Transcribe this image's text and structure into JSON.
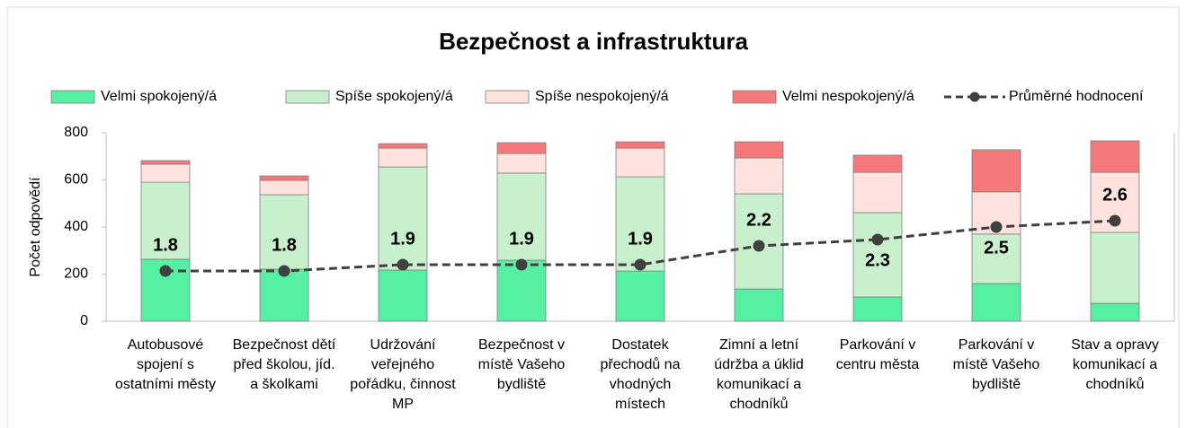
{
  "chart_data": {
    "type": "bar",
    "stacked": true,
    "title": "Bezpečnost a infrastruktura",
    "ylabel": "Počet odpovědí",
    "categories": [
      "Autobusové spojení s ostatními městy",
      "Bezpečnost dětí před školou, jíd. a školkami",
      "Udržování veřejného pořádku, činnost MP",
      "Bezpečnost v místě Vašeho bydliště",
      "Dostatek přechodů na vhodných místech",
      "Zimní a letní údržba a úklid komunikací a chodníků",
      "Parkování v centru města",
      "Parkování v místě Vašeho bydliště",
      "Stav a opravy komunikací a chodníků"
    ],
    "series": [
      {
        "name": "Velmi spokojený/á",
        "color": "#55f0a2",
        "values": [
          263,
          221,
          217,
          259,
          213,
          137,
          103,
          160,
          76
        ]
      },
      {
        "name": "Spíše spokojený/á",
        "color": "#c8f0cd",
        "values": [
          327,
          316,
          438,
          370,
          400,
          404,
          358,
          210,
          301
        ]
      },
      {
        "name": "Spíše nespokojený/á",
        "color": "#fde2dd",
        "values": [
          77,
          61,
          80,
          83,
          122,
          152,
          171,
          179,
          255
        ]
      },
      {
        "name": "Velmi nespokojený/á",
        "color": "#f5797b",
        "values": [
          15,
          19,
          19,
          46,
          27,
          69,
          73,
          179,
          134
        ]
      },
      {
        "name": "Průměrné hodnocení",
        "type": "line",
        "axis": "y2",
        "color": "#404040",
        "values": [
          1.8,
          1.8,
          1.9,
          1.9,
          1.9,
          2.2,
          2.3,
          2.5,
          2.6
        ]
      }
    ],
    "ylim": [
      0,
      800
    ],
    "yticks": [
      0,
      200,
      400,
      600,
      800
    ],
    "y2lim": [
      1,
      4
    ],
    "legend": "top"
  }
}
